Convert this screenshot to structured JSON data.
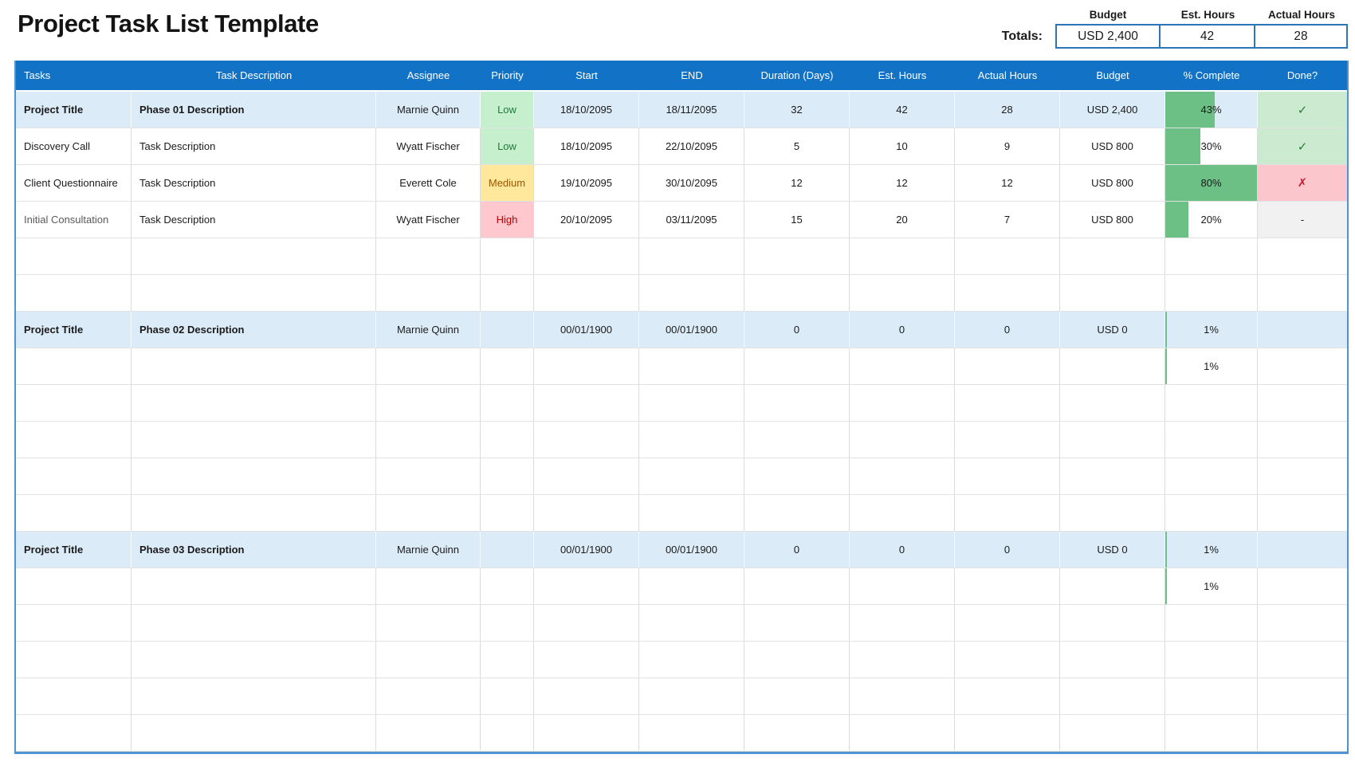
{
  "title": "Project Task List Template",
  "totals": {
    "caption": "Totals:",
    "columns": [
      {
        "label": "Budget",
        "value": "USD 2,400"
      },
      {
        "label": "Est. Hours",
        "value": "42"
      },
      {
        "label": "Actual Hours",
        "value": "28"
      }
    ]
  },
  "table": {
    "columns": [
      "Tasks",
      "Task Description",
      "Assignee",
      "Priority",
      "Start",
      "END",
      "Duration (Days)",
      "Est. Hours",
      "Actual Hours",
      "Budget",
      "% Complete",
      "Done?"
    ],
    "done_glyphs": {
      "check": "✓",
      "cross": "✗",
      "dash": "-"
    },
    "rows": [
      {
        "task": "Project Title",
        "bold": true,
        "highlight": true,
        "desc": "Phase 01 Description",
        "assignee": "Marnie Quinn",
        "priority": "Low",
        "start": "18/10/2095",
        "end": "18/11/2095",
        "duration": "32",
        "est": "42",
        "actual": "28",
        "budget": "USD 2,400",
        "pct": "43%",
        "bar": 54,
        "done": "check"
      },
      {
        "task": "Discovery Call",
        "desc": "Task Description",
        "assignee": "Wyatt Fischer",
        "priority": "Low",
        "start": "18/10/2095",
        "end": "22/10/2095",
        "duration": "5",
        "est": "10",
        "actual": "9",
        "budget": "USD 800",
        "pct": "30%",
        "bar": 38,
        "done": "check"
      },
      {
        "task": "Client Questionnaire",
        "desc": "Task Description",
        "assignee": "Everett Cole",
        "priority": "Medium",
        "start": "19/10/2095",
        "end": "30/10/2095",
        "duration": "12",
        "est": "12",
        "actual": "12",
        "budget": "USD 800",
        "pct": "80%",
        "bar": 100,
        "done": "cross"
      },
      {
        "task": "Initial Consultation",
        "muted": true,
        "desc": "Task Description",
        "assignee": "Wyatt Fischer",
        "priority": "High",
        "start": "20/10/2095",
        "end": "03/11/2095",
        "duration": "15",
        "est": "20",
        "actual": "7",
        "budget": "USD 800",
        "pct": "20%",
        "bar": 25,
        "done": "dash"
      },
      {},
      {},
      {
        "task": "Project Title",
        "bold": true,
        "highlight": true,
        "desc": "Phase 02 Description",
        "assignee": "Marnie Quinn",
        "priority": "",
        "start": "00/01/1900",
        "end": "00/01/1900",
        "duration": "0",
        "est": "0",
        "actual": "0",
        "budget": "USD 0",
        "pct": "1%",
        "bar": 1.5,
        "done": ""
      },
      {
        "pct": "1%",
        "bar": 1.5
      },
      {},
      {},
      {},
      {},
      {
        "task": "Project Title",
        "bold": true,
        "highlight": true,
        "desc": "Phase 03 Description",
        "assignee": "Marnie Quinn",
        "priority": "",
        "start": "00/01/1900",
        "end": "00/01/1900",
        "duration": "0",
        "est": "0",
        "actual": "0",
        "budget": "USD 0",
        "pct": "1%",
        "bar": 1.5,
        "done": ""
      },
      {
        "pct": "1%",
        "bar": 1.5
      },
      {},
      {},
      {},
      {}
    ]
  },
  "colors": {
    "header_bg": "#1273C6",
    "highlight_row": "#DCEBF8",
    "priority_low_bg": "#C6EFCE",
    "priority_low_text": "#1F7A38",
    "priority_medium_bg": "#FFE79C",
    "priority_medium_text": "#9C5700",
    "priority_high_bg": "#FFC7CE",
    "priority_high_text": "#C00000",
    "progress_bar": "#6CBF85",
    "done_yes_bg": "#CBEACF",
    "done_yes_text": "#2D7D3A",
    "done_no_bg": "#FCC7CC",
    "done_no_text": "#C01D2E",
    "done_na_bg": "#F1F1F2",
    "totals_box_border": "#2E75B6",
    "table_outer_border": "#4F93D2"
  }
}
